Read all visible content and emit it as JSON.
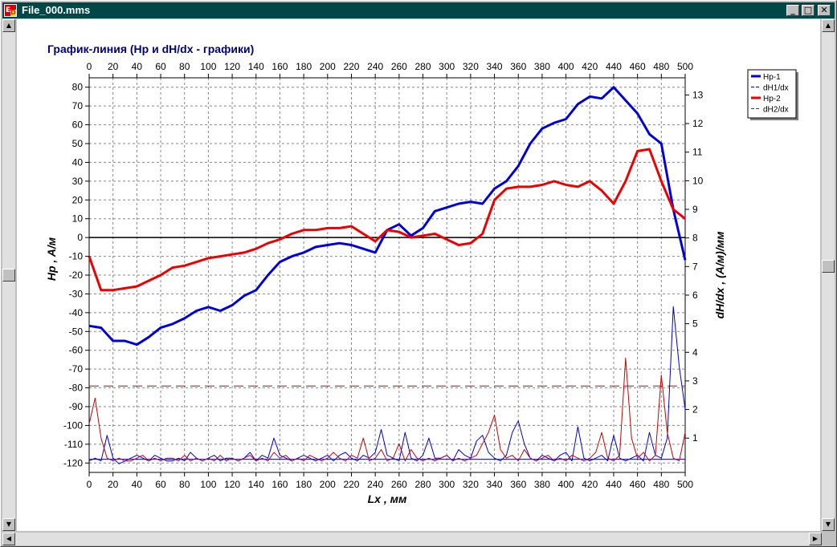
{
  "window": {
    "title": "File_000.mms",
    "icon_label": "E",
    "icon_sub": "D",
    "controls": {
      "minimize": "_",
      "maximize": "□",
      "close": "✕"
    }
  },
  "colors": {
    "hp1": "#0000dd",
    "hp2": "#ee0000",
    "dh1": "#0000dd",
    "dh2": "#cc0000",
    "title": "#000080",
    "titlebar": "#004848"
  },
  "chart_data": {
    "type": "line",
    "title": "График-линия  (Hp и dH/dx - графики)",
    "xlabel": "Lx , мм",
    "ylabel": "Hp , A/м",
    "y2label": "dH/dx , (A/м)/мм",
    "xlim": [
      0,
      500
    ],
    "ylim": [
      -125,
      85
    ],
    "y2lim": [
      -0.2,
      13.6
    ],
    "x_ticks": [
      0,
      20,
      40,
      60,
      80,
      100,
      120,
      140,
      160,
      180,
      200,
      220,
      240,
      260,
      280,
      300,
      320,
      340,
      360,
      380,
      400,
      420,
      440,
      460,
      480,
      500
    ],
    "y_ticks": [
      80,
      70,
      60,
      50,
      40,
      30,
      20,
      10,
      0,
      -10,
      -20,
      -30,
      -40,
      -50,
      -60,
      -70,
      -80,
      -90,
      -100,
      -110,
      -120
    ],
    "y2_ticks": [
      13,
      12,
      11,
      10,
      9,
      8,
      7,
      6,
      5,
      4,
      3,
      2,
      1
    ],
    "grid": true,
    "legend_position": "top-right-outside",
    "legend": [
      {
        "label": "Hp-1",
        "style": "thick",
        "color": "#0000dd"
      },
      {
        "label": "dH1/dx",
        "style": "dash",
        "color": "#0000dd"
      },
      {
        "label": "Hp-2",
        "style": "thick",
        "color": "#ee0000"
      },
      {
        "label": "dH2/dx",
        "style": "dash",
        "color": "#cc0000"
      }
    ],
    "series": [
      {
        "name": "Hp-1",
        "axis": "left",
        "color": "#0000dd",
        "width": 3,
        "x": [
          0,
          10,
          20,
          30,
          40,
          50,
          60,
          70,
          80,
          90,
          100,
          110,
          120,
          130,
          140,
          150,
          160,
          170,
          180,
          190,
          200,
          210,
          220,
          230,
          240,
          250,
          260,
          270,
          280,
          290,
          300,
          310,
          320,
          330,
          340,
          350,
          360,
          370,
          380,
          390,
          400,
          410,
          420,
          430,
          440,
          450,
          460,
          470,
          480,
          490,
          500
        ],
        "y": [
          -47,
          -48,
          -55,
          -55,
          -57,
          -53,
          -48,
          -46,
          -43,
          -39,
          -37,
          -39,
          -36,
          -31,
          -28,
          -20,
          -13,
          -10,
          -8,
          -5,
          -4,
          -3,
          -4,
          -6,
          -8,
          4,
          7,
          1,
          5,
          14,
          16,
          18,
          19,
          18,
          26,
          30,
          38,
          50,
          58,
          61,
          63,
          71,
          75,
          74,
          80,
          73,
          66,
          55,
          50,
          15,
          -12
        ]
      },
      {
        "name": "Hp-2",
        "axis": "left",
        "color": "#ee0000",
        "width": 3,
        "x": [
          0,
          10,
          20,
          30,
          40,
          50,
          60,
          70,
          80,
          90,
          100,
          110,
          120,
          130,
          140,
          150,
          160,
          170,
          180,
          190,
          200,
          210,
          220,
          230,
          240,
          250,
          260,
          270,
          280,
          290,
          300,
          310,
          320,
          330,
          340,
          350,
          360,
          370,
          380,
          390,
          400,
          410,
          420,
          430,
          440,
          450,
          460,
          470,
          480,
          490,
          500
        ],
        "y": [
          -10,
          -28,
          -28,
          -27,
          -26,
          -23,
          -20,
          -16,
          -15,
          -13,
          -11,
          -10,
          -9,
          -8,
          -6,
          -3,
          -1,
          2,
          4,
          4,
          5,
          5,
          6,
          2,
          -2,
          4,
          3,
          0,
          1,
          2,
          -1,
          -4,
          -3,
          2,
          20,
          26,
          27,
          27,
          28,
          30,
          28,
          27,
          30,
          25,
          18,
          30,
          46,
          47,
          30,
          15,
          10
        ]
      },
      {
        "name": "dH1/dx",
        "axis": "right",
        "color": "#0000dd",
        "width": 1,
        "x": [
          0,
          5,
          10,
          15,
          20,
          25,
          30,
          35,
          40,
          45,
          50,
          55,
          60,
          65,
          70,
          75,
          80,
          85,
          90,
          95,
          100,
          105,
          110,
          115,
          120,
          125,
          130,
          135,
          140,
          145,
          150,
          155,
          160,
          165,
          170,
          175,
          180,
          185,
          190,
          195,
          200,
          205,
          210,
          215,
          220,
          225,
          230,
          235,
          240,
          245,
          250,
          255,
          260,
          265,
          270,
          275,
          280,
          285,
          290,
          295,
          300,
          305,
          310,
          315,
          320,
          325,
          330,
          335,
          340,
          345,
          350,
          355,
          360,
          365,
          370,
          375,
          380,
          385,
          390,
          395,
          400,
          405,
          410,
          415,
          420,
          425,
          430,
          435,
          440,
          445,
          450,
          455,
          460,
          465,
          470,
          475,
          480,
          485,
          490,
          495,
          500
        ],
        "y": [
          0.2,
          0.3,
          0.2,
          1.1,
          0.3,
          0.1,
          0.2,
          0.3,
          0.4,
          0.3,
          0.2,
          0.4,
          0.3,
          0.2,
          0.2,
          0.3,
          0.2,
          0.5,
          0.3,
          0.2,
          0.3,
          0.4,
          0.2,
          0.3,
          0.3,
          0.2,
          0.3,
          0.5,
          0.2,
          0.4,
          0.3,
          1.0,
          0.4,
          0.3,
          0.2,
          0.3,
          0.4,
          0.3,
          0.2,
          0.3,
          0.4,
          0.2,
          0.4,
          0.5,
          0.3,
          0.2,
          0.4,
          0.3,
          0.5,
          1.3,
          0.4,
          0.3,
          0.2,
          1.2,
          0.3,
          0.2,
          0.4,
          1.0,
          0.3,
          0.3,
          0.4,
          0.2,
          0.6,
          0.4,
          0.3,
          0.9,
          1.1,
          0.5,
          0.3,
          0.2,
          0.4,
          1.2,
          1.6,
          0.8,
          0.3,
          0.2,
          0.4,
          0.3,
          0.2,
          0.4,
          0.5,
          0.2,
          1.4,
          0.3,
          0.2,
          0.3,
          0.4,
          0.2,
          1.1,
          0.3,
          0.2,
          0.3,
          0.4,
          0.2,
          1.2,
          0.4,
          0.3,
          1.0,
          5.6,
          3.5,
          2.0
        ]
      },
      {
        "name": "dH2/dx",
        "axis": "right",
        "color": "#cc0000",
        "width": 1,
        "x": [
          0,
          5,
          10,
          15,
          20,
          25,
          30,
          35,
          40,
          45,
          50,
          55,
          60,
          65,
          70,
          75,
          80,
          85,
          90,
          95,
          100,
          105,
          110,
          115,
          120,
          125,
          130,
          135,
          140,
          145,
          150,
          155,
          160,
          165,
          170,
          175,
          180,
          185,
          190,
          195,
          200,
          205,
          210,
          215,
          220,
          225,
          230,
          235,
          240,
          245,
          250,
          255,
          260,
          265,
          270,
          275,
          280,
          285,
          290,
          295,
          300,
          305,
          310,
          315,
          320,
          325,
          330,
          335,
          340,
          345,
          350,
          355,
          360,
          365,
          370,
          375,
          380,
          385,
          390,
          395,
          400,
          405,
          410,
          415,
          420,
          425,
          430,
          435,
          440,
          445,
          450,
          455,
          460,
          465,
          470,
          475,
          480,
          485,
          490,
          495,
          500
        ],
        "y": [
          1.5,
          2.4,
          1.0,
          0.3,
          0.2,
          0.3,
          0.2,
          0.2,
          0.3,
          0.4,
          0.2,
          0.3,
          0.2,
          0.3,
          0.3,
          0.2,
          0.4,
          0.2,
          0.3,
          0.2,
          0.3,
          0.2,
          0.4,
          0.2,
          0.3,
          0.2,
          0.3,
          0.4,
          0.2,
          0.3,
          0.2,
          0.5,
          0.3,
          0.4,
          0.2,
          0.3,
          0.2,
          0.4,
          0.3,
          0.2,
          0.3,
          0.5,
          0.3,
          0.2,
          0.4,
          0.3,
          1.0,
          0.2,
          0.3,
          0.6,
          0.2,
          0.3,
          0.8,
          0.2,
          0.6,
          0.3,
          0.2,
          0.3,
          0.2,
          0.3,
          0.4,
          0.2,
          0.3,
          0.2,
          0.3,
          0.4,
          0.8,
          1.2,
          1.8,
          0.6,
          0.3,
          0.4,
          0.2,
          0.6,
          0.3,
          0.2,
          0.3,
          0.4,
          0.2,
          0.3,
          0.2,
          0.4,
          0.3,
          0.2,
          0.3,
          0.5,
          1.2,
          0.3,
          0.2,
          0.4,
          3.8,
          1.0,
          0.3,
          0.5,
          0.2,
          0.4,
          3.2,
          1.2,
          0.3,
          0.2,
          1.2
        ]
      }
    ],
    "reference_lines": [
      {
        "axis": "left",
        "y": -79,
        "style": "dash",
        "color": "#cc0000"
      },
      {
        "axis": "left",
        "y": -118,
        "style": "solid",
        "color": "#0000dd"
      },
      {
        "axis": "left",
        "y": 0,
        "style": "solid",
        "color": "#000000"
      }
    ]
  }
}
